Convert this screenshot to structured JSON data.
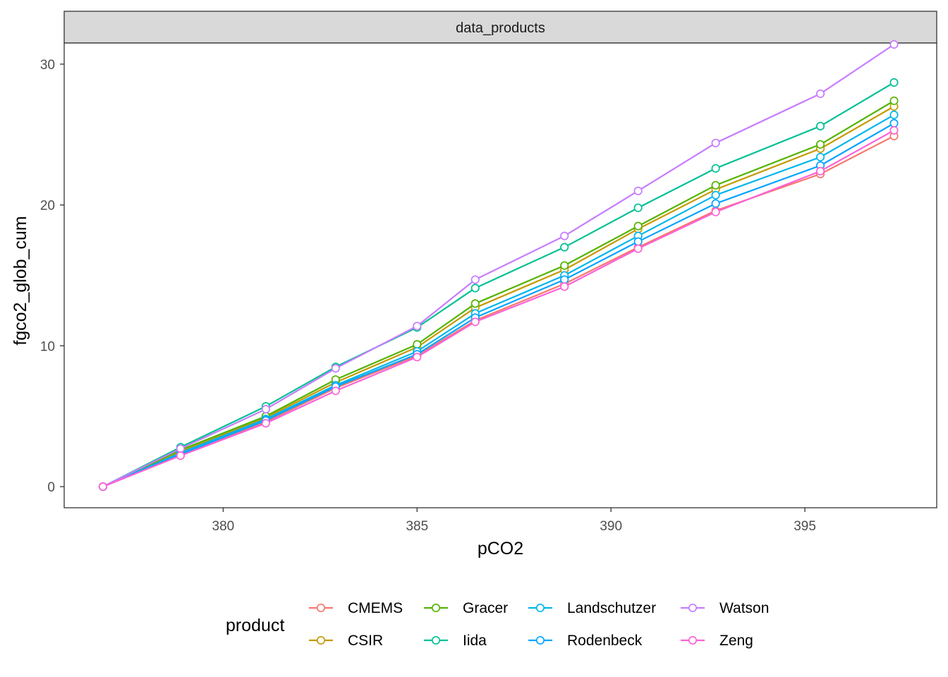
{
  "chart_data": {
    "type": "line",
    "facet_label": "data_products",
    "xlabel": "pCO2",
    "ylabel": "fgco2_glob_cum",
    "xlim": [
      375.9,
      398.4
    ],
    "ylim": [
      -1.5,
      31.5
    ],
    "x_ticks": [
      380,
      385,
      390,
      395
    ],
    "y_ticks": [
      0,
      10,
      20,
      30
    ],
    "grid": false,
    "markers": "open circles",
    "legend_title": "product",
    "legend_position": "bottom",
    "x": [
      376.9,
      378.9,
      381.1,
      382.9,
      385.0,
      386.5,
      388.8,
      390.7,
      392.7,
      395.4,
      397.3
    ],
    "series": [
      {
        "name": "CMEMS",
        "color": "#F8766D",
        "values": [
          0,
          2.3,
          4.6,
          7.0,
          9.3,
          11.8,
          14.4,
          17.0,
          19.6,
          22.2,
          24.9
        ]
      },
      {
        "name": "CSIR",
        "color": "#C49A00",
        "values": [
          0,
          2.5,
          4.9,
          7.4,
          9.9,
          12.7,
          15.4,
          18.3,
          21.1,
          24.0,
          27.0
        ]
      },
      {
        "name": "Gracer",
        "color": "#53B400",
        "values": [
          0,
          2.6,
          5.0,
          7.6,
          10.1,
          13.0,
          15.7,
          18.5,
          21.4,
          24.3,
          27.4
        ]
      },
      {
        "name": "Iida",
        "color": "#00C094",
        "values": [
          0,
          2.8,
          5.7,
          8.5,
          11.3,
          14.1,
          17.0,
          19.8,
          22.6,
          25.6,
          28.7
        ]
      },
      {
        "name": "Landschutzer",
        "color": "#00B6EB",
        "values": [
          0,
          2.4,
          4.8,
          7.2,
          9.6,
          12.3,
          15.0,
          17.8,
          20.7,
          23.4,
          26.4
        ]
      },
      {
        "name": "Rodenbeck",
        "color": "#06A4FF",
        "values": [
          0,
          2.3,
          4.7,
          7.1,
          9.4,
          12.0,
          14.7,
          17.4,
          20.1,
          22.8,
          25.8
        ]
      },
      {
        "name": "Watson",
        "color": "#C77CFF",
        "values": [
          0,
          2.7,
          5.5,
          8.4,
          11.4,
          14.7,
          17.8,
          21.0,
          24.4,
          27.9,
          31.4
        ]
      },
      {
        "name": "Zeng",
        "color": "#FB61D7",
        "values": [
          0,
          2.2,
          4.5,
          6.8,
          9.2,
          11.7,
          14.2,
          16.9,
          19.5,
          22.4,
          25.3
        ]
      }
    ]
  }
}
